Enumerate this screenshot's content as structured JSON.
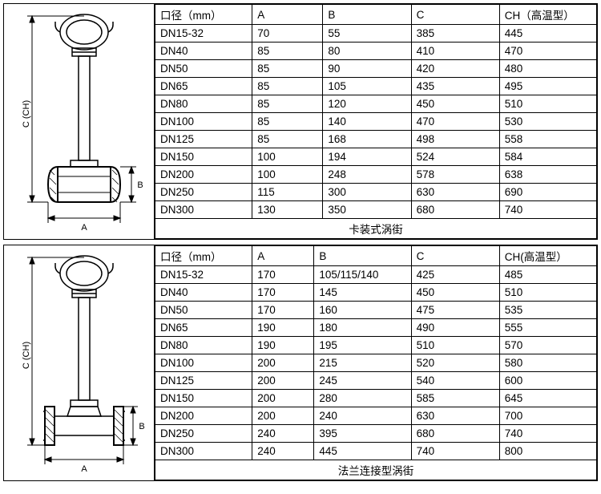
{
  "panel1": {
    "caption": "卡装式涡街",
    "diagram": {
      "c_label": "C (CH)",
      "b_label": "B",
      "a_label": "A"
    },
    "columns": [
      "口径（mm）",
      "A",
      "B",
      "C",
      "CH（高温型）"
    ],
    "col_widths": [
      "22%",
      "16%",
      "20%",
      "20%",
      "22%"
    ],
    "rows": [
      [
        "DN15-32",
        "70",
        "55",
        "385",
        "445"
      ],
      [
        "DN40",
        "85",
        "80",
        "410",
        "470"
      ],
      [
        "DN50",
        "85",
        "90",
        "420",
        "480"
      ],
      [
        "DN65",
        "85",
        "105",
        "435",
        "495"
      ],
      [
        "DN80",
        "85",
        "120",
        "450",
        "510"
      ],
      [
        "DN100",
        "85",
        "140",
        "470",
        "530"
      ],
      [
        "DN125",
        "85",
        "168",
        "498",
        "558"
      ],
      [
        "DN150",
        "100",
        "194",
        "524",
        "584"
      ],
      [
        "DN200",
        "100",
        "248",
        "578",
        "638"
      ],
      [
        "DN250",
        "115",
        "300",
        "630",
        "690"
      ],
      [
        "DN300",
        "130",
        "350",
        "680",
        "740"
      ]
    ]
  },
  "panel2": {
    "caption": "法兰连接型涡街",
    "diagram": {
      "c_label": "C (CH)",
      "b_label": "B",
      "a_label": "A"
    },
    "columns": [
      "口径（mm）",
      "A",
      "B",
      "C",
      "CH(高温型）"
    ],
    "col_widths": [
      "22%",
      "14%",
      "22%",
      "20%",
      "22%"
    ],
    "rows": [
      [
        "DN15-32",
        "170",
        "105/115/140",
        "425",
        "485"
      ],
      [
        "DN40",
        "170",
        "145",
        "450",
        "510"
      ],
      [
        "DN50",
        "170",
        "160",
        "475",
        "535"
      ],
      [
        "DN65",
        "190",
        "180",
        "490",
        "555"
      ],
      [
        "DN80",
        "190",
        "195",
        "510",
        "570"
      ],
      [
        "DN100",
        "200",
        "215",
        "520",
        "580"
      ],
      [
        "DN125",
        "200",
        "245",
        "540",
        "600"
      ],
      [
        "DN150",
        "200",
        "280",
        "585",
        "645"
      ],
      [
        "DN200",
        "200",
        "240",
        "630",
        "700"
      ],
      [
        "DN250",
        "240",
        "395",
        "680",
        "740"
      ],
      [
        "DN300",
        "240",
        "445",
        "740",
        "800"
      ]
    ]
  },
  "style": {
    "stroke": "#000",
    "thin": 1,
    "thick": 2,
    "hatch_gap": 5
  }
}
